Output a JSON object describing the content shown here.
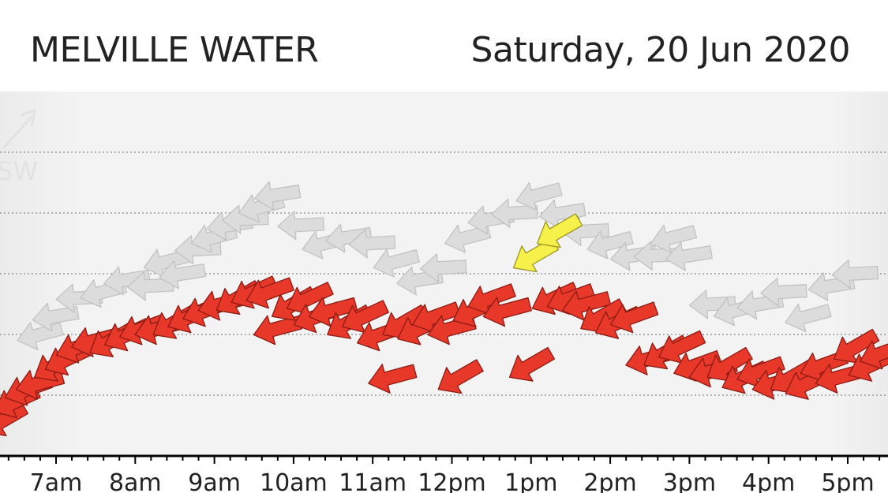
{
  "header": {
    "station": "MELVILLE WATER",
    "date": "Saturday, 20 Jun 2020"
  },
  "watermark": {
    "text": "SW",
    "icon": "wind-direction-arrow-icon"
  },
  "colors": {
    "recent": "#e8382a",
    "recent_outline": "#8a1a12",
    "older": "#dcdcdc",
    "older_outline": "#c0c0c0",
    "latest": "#f5f04a",
    "latest_outline": "#9a9420",
    "plot_bg": "#f3f3f3",
    "grid": "#9a9a9a"
  },
  "chart_data": {
    "type": "scatter",
    "title": "",
    "x_ticks": [
      "7am",
      "8am",
      "9am",
      "10am",
      "11am",
      "12pm",
      "1pm",
      "2pm",
      "3pm",
      "4pm",
      "5pm"
    ],
    "x_range_hours": [
      6.3,
      17.5
    ],
    "y_range": [
      0,
      6
    ],
    "y_gridlines": [
      1,
      2,
      3,
      4,
      5
    ],
    "grid": true,
    "arrow_direction_label": "SW",
    "series": [
      {
        "points": [
          {
            "t": 6.35,
            "v": 0.6
          },
          {
            "t": 6.5,
            "v": 0.9
          },
          {
            "t": 6.65,
            "v": 1.1
          },
          {
            "t": 6.8,
            "v": 1.2
          },
          {
            "t": 7.0,
            "v": 1.5
          },
          {
            "t": 7.15,
            "v": 1.6
          },
          {
            "t": 7.3,
            "v": 1.8
          },
          {
            "t": 7.5,
            "v": 1.9
          },
          {
            "t": 7.7,
            "v": 1.9
          },
          {
            "t": 7.9,
            "v": 2.0
          },
          {
            "t": 8.1,
            "v": 2.1
          },
          {
            "t": 8.3,
            "v": 2.1
          },
          {
            "t": 8.5,
            "v": 2.2
          },
          {
            "t": 8.7,
            "v": 2.3
          },
          {
            "t": 8.9,
            "v": 2.4
          },
          {
            "t": 9.1,
            "v": 2.5
          },
          {
            "t": 9.3,
            "v": 2.6
          },
          {
            "t": 9.5,
            "v": 2.7
          },
          {
            "t": 9.7,
            "v": 2.7
          },
          {
            "t": 9.8,
            "v": 2.1
          },
          {
            "t": 10.0,
            "v": 2.5
          },
          {
            "t": 10.2,
            "v": 2.6
          },
          {
            "t": 10.3,
            "v": 2.3
          },
          {
            "t": 10.5,
            "v": 2.4
          },
          {
            "t": 10.7,
            "v": 2.2
          },
          {
            "t": 10.9,
            "v": 2.3
          },
          {
            "t": 11.1,
            "v": 2.0
          },
          {
            "t": 11.25,
            "v": 1.3
          },
          {
            "t": 11.4,
            "v": 2.2
          },
          {
            "t": 11.6,
            "v": 2.1
          },
          {
            "t": 11.8,
            "v": 2.3
          },
          {
            "t": 12.0,
            "v": 2.1
          },
          {
            "t": 12.1,
            "v": 1.3
          },
          {
            "t": 12.3,
            "v": 2.4
          },
          {
            "t": 12.5,
            "v": 2.6
          },
          {
            "t": 12.7,
            "v": 2.4
          },
          {
            "t": 13.0,
            "v": 1.5
          },
          {
            "t": 13.3,
            "v": 2.6
          },
          {
            "t": 13.5,
            "v": 2.6
          },
          {
            "t": 13.7,
            "v": 2.5
          },
          {
            "t": 13.9,
            "v": 2.3
          },
          {
            "t": 14.1,
            "v": 2.2
          },
          {
            "t": 14.3,
            "v": 2.3
          },
          {
            "t": 14.5,
            "v": 1.6
          },
          {
            "t": 14.7,
            "v": 1.7
          },
          {
            "t": 14.9,
            "v": 1.8
          },
          {
            "t": 15.1,
            "v": 1.5
          },
          {
            "t": 15.3,
            "v": 1.4
          },
          {
            "t": 15.5,
            "v": 1.5
          },
          {
            "t": 15.7,
            "v": 1.3
          },
          {
            "t": 15.9,
            "v": 1.4
          },
          {
            "t": 16.1,
            "v": 1.2
          },
          {
            "t": 16.3,
            "v": 1.3
          },
          {
            "t": 16.5,
            "v": 1.2
          },
          {
            "t": 16.7,
            "v": 1.5
          },
          {
            "t": 16.9,
            "v": 1.3
          },
          {
            "t": 17.1,
            "v": 1.8
          },
          {
            "t": 17.3,
            "v": 1.5
          },
          {
            "t": 17.45,
            "v": 1.7
          }
        ]
      },
      {
        "points": [
          {
            "t": 6.8,
            "v": 2.0
          },
          {
            "t": 7.0,
            "v": 2.3
          },
          {
            "t": 7.3,
            "v": 2.6
          },
          {
            "t": 7.6,
            "v": 2.7
          },
          {
            "t": 7.9,
            "v": 2.9
          },
          {
            "t": 8.2,
            "v": 2.8
          },
          {
            "t": 8.4,
            "v": 3.2
          },
          {
            "t": 8.6,
            "v": 3.0
          },
          {
            "t": 8.8,
            "v": 3.4
          },
          {
            "t": 9.0,
            "v": 3.6
          },
          {
            "t": 9.2,
            "v": 3.8
          },
          {
            "t": 9.4,
            "v": 3.9
          },
          {
            "t": 9.6,
            "v": 4.1
          },
          {
            "t": 9.8,
            "v": 4.3
          },
          {
            "t": 10.1,
            "v": 3.8
          },
          {
            "t": 10.4,
            "v": 3.5
          },
          {
            "t": 10.7,
            "v": 3.6
          },
          {
            "t": 11.0,
            "v": 3.5
          },
          {
            "t": 11.3,
            "v": 3.2
          },
          {
            "t": 11.6,
            "v": 2.9
          },
          {
            "t": 11.9,
            "v": 3.1
          },
          {
            "t": 12.2,
            "v": 3.6
          },
          {
            "t": 12.5,
            "v": 3.9
          },
          {
            "t": 12.8,
            "v": 4.0
          },
          {
            "t": 13.1,
            "v": 4.3
          },
          {
            "t": 13.4,
            "v": 4.0
          },
          {
            "t": 13.7,
            "v": 3.7
          },
          {
            "t": 14.0,
            "v": 3.5
          },
          {
            "t": 14.3,
            "v": 3.3
          },
          {
            "t": 14.6,
            "v": 3.3
          },
          {
            "t": 14.8,
            "v": 3.6
          },
          {
            "t": 15.0,
            "v": 3.3
          },
          {
            "t": 15.3,
            "v": 2.5
          },
          {
            "t": 15.6,
            "v": 2.4
          },
          {
            "t": 15.9,
            "v": 2.5
          },
          {
            "t": 16.2,
            "v": 2.7
          },
          {
            "t": 16.5,
            "v": 2.3
          },
          {
            "t": 16.8,
            "v": 2.8
          },
          {
            "t": 17.1,
            "v": 3.0
          }
        ]
      },
      {
        "points": [
          {
            "t": 13.05,
            "v": 3.3
          },
          {
            "t": 13.35,
            "v": 3.7
          }
        ]
      }
    ]
  }
}
